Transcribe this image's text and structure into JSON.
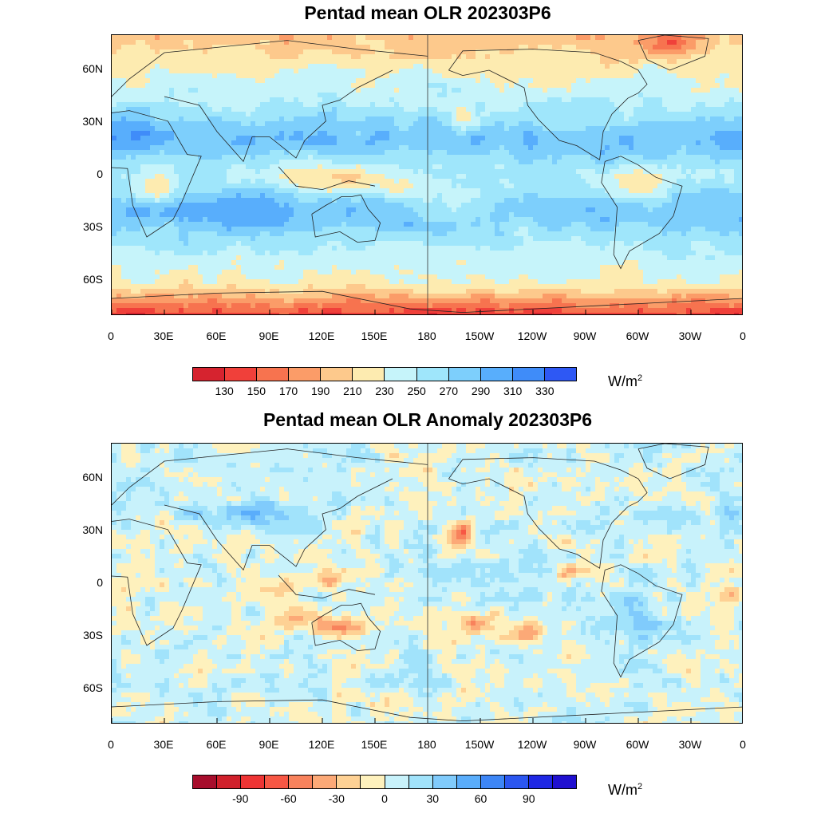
{
  "panels": [
    {
      "title": "Pentad mean OLR 202303P6",
      "units_base": "W/m",
      "units_exp": "2",
      "colorbar_colors": [
        "#d6232f",
        "#f0403a",
        "#f7734f",
        "#fb9c68",
        "#fdc98c",
        "#fdebb0",
        "#c6f4fa",
        "#9fe6fb",
        "#7dcffc",
        "#58aefc",
        "#3f8cf9",
        "#2e58f4"
      ],
      "colorbar_labels": [
        "130",
        "150",
        "170",
        "190",
        "210",
        "230",
        "250",
        "270",
        "290",
        "310",
        "330"
      ],
      "field_type": "olr"
    },
    {
      "title": "Pentad mean OLR Anomaly 202303P6",
      "units_base": "W/m",
      "units_exp": "2",
      "colorbar_colors": [
        "#a70d2c",
        "#d0202b",
        "#ee3434",
        "#f75744",
        "#f8825c",
        "#fca977",
        "#fed194",
        "#fef1bd",
        "#c8f2fb",
        "#a1e3fb",
        "#80cbfc",
        "#5aadfb",
        "#3d86f6",
        "#2b56f0",
        "#1f27e4",
        "#2010d0"
      ],
      "colorbar_labels": [
        "-90",
        "-60",
        "-30",
        "0",
        "30",
        "60",
        "90"
      ],
      "field_type": "anomaly"
    }
  ],
  "axes": {
    "x_ticks": [
      "0",
      "30E",
      "60E",
      "90E",
      "120E",
      "150E",
      "180",
      "150W",
      "120W",
      "90W",
      "60W",
      "30W",
      "0"
    ],
    "y_ticks": [
      "60N",
      "30N",
      "0",
      "30S",
      "60S"
    ]
  }
}
